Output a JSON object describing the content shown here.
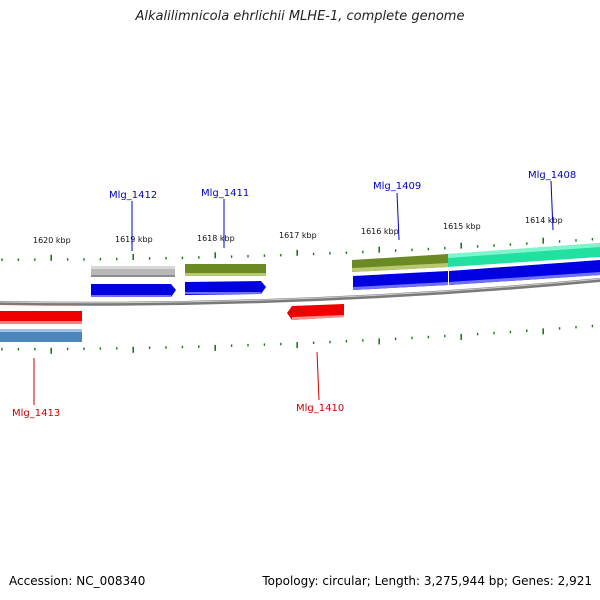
{
  "title": "Alkalilimnicola ehrlichii MLHE-1, complete genome",
  "footer": {
    "accession": "Accession: NC_008340",
    "summary": "Topology: circular; Length: 3,275,944 bp; Genes: 2,921"
  },
  "scale_labels": [
    "1620 kbp",
    "1619 kbp",
    "1618 kbp",
    "1617 kbp",
    "1616 kbp",
    "1615 kbp",
    "1614 kbp"
  ],
  "gene_labels": {
    "top": [
      "Mlg_1412",
      "Mlg_1411",
      "Mlg_1409",
      "Mlg_1408"
    ],
    "bottom": [
      "Mlg_1413",
      "Mlg_1410"
    ]
  },
  "colors": {
    "label_top": "#0000cc",
    "label_bottom": "#cc0000",
    "tick": "#1a7a1a"
  }
}
